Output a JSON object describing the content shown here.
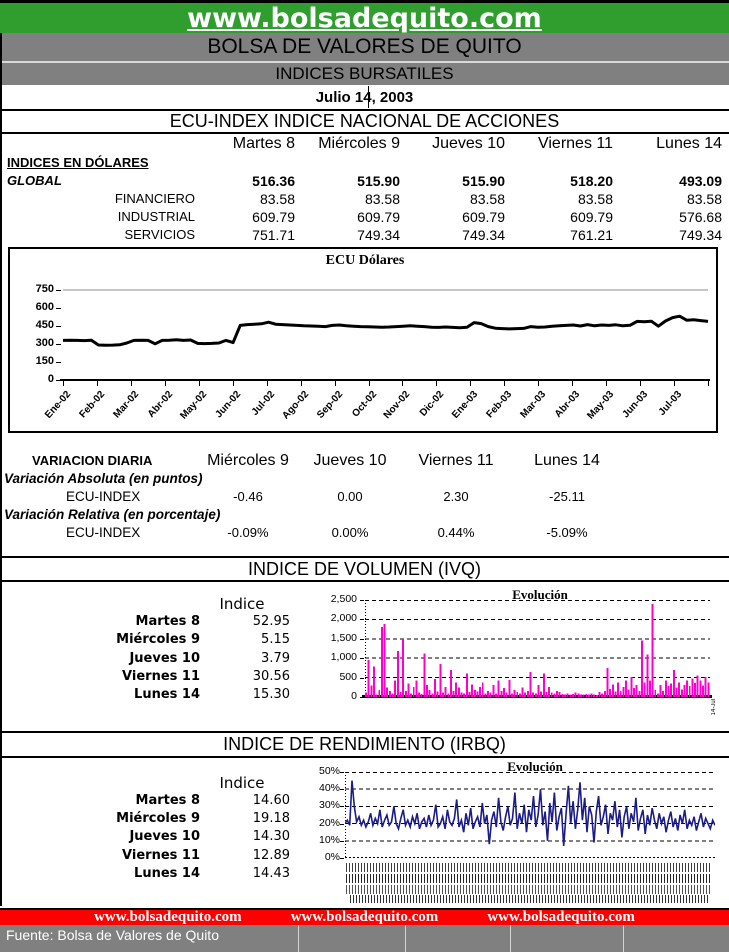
{
  "header": {
    "website": "www.bolsadequito.com",
    "org": "BOLSA DE VALORES DE QUITO",
    "report": "INDICES BURSATILES",
    "date": "Julio 14, 2003"
  },
  "indices_section": {
    "title": "ECU-INDEX  INDICE NACIONAL DE ACCIONES",
    "day_columns": [
      "Martes 8",
      "Miércoles 9",
      "Jueves 10",
      "Viernes 11",
      "Lunes 14"
    ],
    "group_label": "INDICES EN DÓLARES",
    "rows": [
      {
        "label": "GLOBAL",
        "values": [
          "516.36",
          "515.90",
          "515.90",
          "518.20",
          "493.09"
        ]
      },
      {
        "label": "FINANCIERO",
        "values": [
          "83.58",
          "83.58",
          "83.58",
          "83.58",
          "83.58"
        ]
      },
      {
        "label": "INDUSTRIAL",
        "values": [
          "609.79",
          "609.79",
          "609.79",
          "609.79",
          "576.68"
        ]
      },
      {
        "label": "SERVICIOS",
        "values": [
          "751.71",
          "749.34",
          "749.34",
          "761.21",
          "749.34"
        ]
      }
    ]
  },
  "variacion": {
    "title": "VARIACION DIARIA",
    "day_columns": [
      "Miércoles 9",
      "Jueves 10",
      "Viernes 11",
      "Lunes 14"
    ],
    "absolute_label": "Variación Absoluta (en puntos)",
    "relative_label": "Variación Relativa (en porcentaje)",
    "row_label": "ECU-INDEX",
    "absolute_values": [
      "-0.46",
      "0.00",
      "2.30",
      "-25.11"
    ],
    "relative_values": [
      "-0.09%",
      "0.00%",
      "0.44%",
      "-5.09%"
    ]
  },
  "volumen": {
    "title": "INDICE DE VOLUMEN (IVQ)",
    "col_header": "Indice",
    "rows": [
      [
        "Martes 8",
        "52.95"
      ],
      [
        "Miércoles 9",
        "5.15"
      ],
      [
        "Jueves 10",
        "3.79"
      ],
      [
        "Viernes 11",
        "30.56"
      ],
      [
        "Lunes 14",
        "15.30"
      ]
    ]
  },
  "rendimiento": {
    "title": "INDICE DE RENDIMIENTO (IRBQ)",
    "col_header": "Indice",
    "rows": [
      [
        "Martes 8",
        "14.60"
      ],
      [
        "Miércoles 9",
        "19.18"
      ],
      [
        "Jueves 10",
        "14.30"
      ],
      [
        "Viernes 11",
        "12.89"
      ],
      [
        "Lunes 14",
        "14.43"
      ]
    ]
  },
  "footer": {
    "urls": [
      "www.bolsadequito.com",
      "www.bolsadequito.com",
      "www.bolsadequito.com"
    ],
    "fuente": "Fuente: Bolsa de Valores de Quito"
  },
  "colors": {
    "header_green": "#2F9E2F",
    "bar_gray": "#808080",
    "footer_red": "#FE0000",
    "volume_magenta": "#FF00CC",
    "yield_navy": "#1B1B8A"
  },
  "chart_data": [
    {
      "type": "line",
      "title": "ECU Dólares",
      "x_tick_labels": [
        "Ene-02",
        "Feb-02",
        "Mar-02",
        "Abr-02",
        "May-02",
        "Jun-02",
        "Jul-02",
        "Ago-02",
        "Sep-02",
        "Oct-02",
        "Nov-02",
        "Dic-02",
        "Ene-03",
        "Feb-03",
        "Mar-03",
        "Abr-03",
        "May-03",
        "Jun-03",
        "Jul-03"
      ],
      "y_ticks": [
        0,
        150,
        300,
        450,
        600,
        750
      ],
      "ylim": [
        0,
        750
      ],
      "grid": "single-line-at-750",
      "line_color": "#000000",
      "values": [
        330,
        332,
        330,
        328,
        331,
        292,
        290,
        291,
        293,
        308,
        330,
        331,
        330,
        302,
        330,
        332,
        336,
        330,
        333,
        305,
        303,
        305,
        308,
        330,
        312,
        455,
        462,
        465,
        468,
        482,
        465,
        462,
        458,
        455,
        452,
        450,
        448,
        445,
        455,
        458,
        452,
        448,
        445,
        443,
        442,
        440,
        442,
        445,
        448,
        452,
        448,
        445,
        440,
        438,
        442,
        438,
        436,
        440,
        478,
        470,
        445,
        432,
        428,
        426,
        428,
        430,
        445,
        440,
        442,
        448,
        452,
        455,
        458,
        450,
        462,
        452,
        458,
        455,
        460,
        452,
        456,
        488,
        485,
        490,
        448,
        492,
        520,
        532,
        498,
        502,
        495,
        488
      ]
    },
    {
      "type": "bar",
      "title": "Evolución",
      "y_tick_labels": [
        "0",
        "500",
        "1,000",
        "1,500",
        "2,000",
        "2,500"
      ],
      "ylim": [
        0,
        2500
      ],
      "grid": "dashed-horizontal",
      "bar_color": "#FF00CC",
      "right_label": "14-Jul",
      "values": [
        120,
        950,
        300,
        780,
        60,
        180,
        1800,
        1880,
        240,
        150,
        90,
        420,
        1180,
        130,
        1500,
        160,
        350,
        90,
        260,
        420,
        120,
        80,
        1120,
        310,
        180,
        90,
        460,
        140,
        850,
        120,
        260,
        90,
        700,
        150,
        380,
        240,
        110,
        90,
        610,
        130,
        320,
        180,
        140,
        260,
        380,
        90,
        160,
        120,
        310,
        90,
        420,
        150,
        230,
        120,
        440,
        90,
        180,
        130,
        90,
        240,
        110,
        160,
        650,
        120,
        90,
        310,
        140,
        600,
        130,
        260,
        110,
        90,
        160,
        130,
        80,
        60,
        90,
        70,
        80,
        110,
        90,
        70,
        60,
        80,
        70,
        90,
        60,
        50,
        130,
        90,
        160,
        750,
        200,
        320,
        140,
        380,
        160,
        260,
        420,
        190,
        520,
        230,
        310,
        160,
        1450,
        380,
        1100,
        420,
        2400,
        180,
        90,
        310,
        160,
        420,
        280,
        350,
        700,
        240,
        380,
        190,
        310,
        420,
        280,
        480,
        360,
        560,
        420,
        300,
        520,
        380
      ]
    },
    {
      "type": "line",
      "title": "Evolución",
      "y_tick_labels": [
        "0%",
        "10%",
        "20%",
        "30%",
        "40%",
        "50%"
      ],
      "ylim": [
        0,
        50
      ],
      "grid": "dashed-horizontal",
      "x_tick_labels_illegible": true,
      "line_color": "#1B1B8A",
      "values": [
        20,
        22,
        19,
        45,
        30,
        21,
        24,
        19,
        22,
        18,
        21,
        26,
        19,
        23,
        20,
        28,
        18,
        22,
        25,
        19,
        21,
        30,
        20,
        17,
        23,
        28,
        19,
        22,
        18,
        24,
        20,
        26,
        17,
        21,
        23,
        18,
        25,
        19,
        22,
        31,
        18,
        20,
        24,
        17,
        28,
        21,
        19,
        23,
        34,
        18,
        22,
        15,
        26,
        19,
        29,
        17,
        21,
        24,
        18,
        32,
        20,
        25,
        8,
        22,
        27,
        18,
        35,
        21,
        16,
        24,
        30,
        19,
        23,
        38,
        17,
        26,
        20,
        31,
        15,
        28,
        22,
        36,
        18,
        25,
        40,
        19,
        27,
        10,
        32,
        21,
        38,
        16,
        24,
        29,
        7,
        26,
        42,
        20,
        33,
        17,
        28,
        44,
        22,
        35,
        15,
        30,
        25,
        9,
        27,
        36,
        19,
        24,
        31,
        14,
        26,
        22,
        33,
        18,
        28,
        12,
        24,
        30,
        17,
        26,
        21,
        35,
        16,
        23,
        28,
        14,
        25,
        19,
        29,
        22,
        17,
        26,
        20,
        24,
        15,
        22,
        27,
        18,
        23,
        16,
        25,
        20,
        28,
        17,
        22,
        19,
        24,
        16,
        21,
        26,
        18,
        23,
        20,
        17,
        22,
        19
      ]
    }
  ]
}
